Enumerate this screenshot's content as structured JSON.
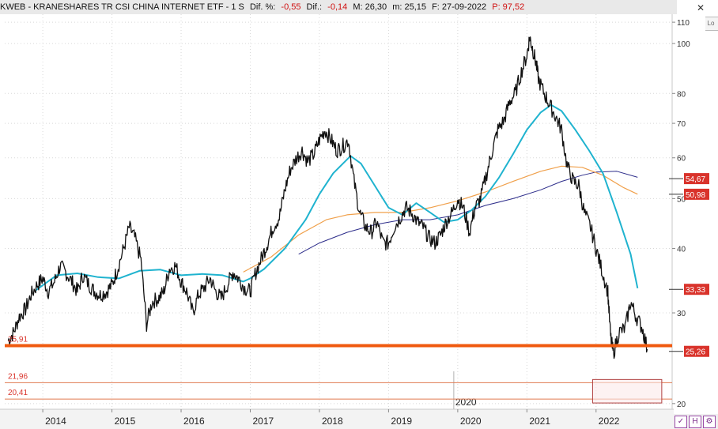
{
  "header": {
    "instrument": "KWEB - KRANESHARES TR CSI CHINA INTERNET ETF - 1 S",
    "diff_pct_label": "Dif. %:",
    "diff_pct_value": "-0,55",
    "diff_label": "Dif.:",
    "diff_value": "-0,14",
    "max_label": "M: 26,30",
    "min_label": "m: 25,15",
    "date_label": "F: 27-09-2022",
    "p_label": "P: 97,52"
  },
  "toolbar": {
    "close_glyph": "✕",
    "scale_label": "Lo",
    "btn_flag": "✓",
    "btn_save": "H",
    "btn_settings": "⚙"
  },
  "colors": {
    "price": "#111111",
    "ma_short": "#1fb3cf",
    "ma_mid": "#f0a04b",
    "ma_long": "#2c2c8a",
    "support": "#f05a10",
    "level_lines": "#e07a50",
    "label_red": "#d9332b",
    "grid": "#d8d8d8"
  },
  "chart_data": {
    "type": "line",
    "title": "KWEB - KRANESHARES TR CSI CHINA INTERNET ETF - 1 S",
    "y_scale": "log",
    "ylim": [
      19.5,
      114
    ],
    "y_ticks": [
      20,
      30,
      40,
      50,
      60,
      70,
      80,
      100,
      110
    ],
    "x_range": [
      2013.45,
      2023.1
    ],
    "x_ticks": [
      {
        "x": 2014,
        "label": "2014"
      },
      {
        "x": 2015,
        "label": "2015"
      },
      {
        "x": 2016,
        "label": "2016"
      },
      {
        "x": 2017,
        "label": "2017"
      },
      {
        "x": 2018,
        "label": "2018"
      },
      {
        "x": 2019,
        "label": "2019"
      },
      {
        "x": 2020,
        "label": "2020"
      },
      {
        "x": 2021,
        "label": "2021"
      },
      {
        "x": 2022,
        "label": "2022"
      }
    ],
    "x_marker": {
      "x": 2020,
      "label": "2020"
    },
    "grid": true,
    "series": [
      {
        "key": "price",
        "x": [
          2013.5,
          2013.58,
          2013.66,
          2013.75,
          2013.83,
          2013.92,
          2014.0,
          2014.08,
          2014.17,
          2014.25,
          2014.33,
          2014.42,
          2014.5,
          2014.58,
          2014.67,
          2014.75,
          2014.83,
          2014.92,
          2015.0,
          2015.08,
          2015.17,
          2015.25,
          2015.33,
          2015.42,
          2015.5,
          2015.58,
          2015.67,
          2015.75,
          2015.83,
          2015.92,
          2016.0,
          2016.08,
          2016.17,
          2016.25,
          2016.33,
          2016.42,
          2016.5,
          2016.58,
          2016.67,
          2016.75,
          2016.83,
          2016.92,
          2017.0,
          2017.08,
          2017.17,
          2017.25,
          2017.33,
          2017.42,
          2017.5,
          2017.58,
          2017.67,
          2017.75,
          2017.83,
          2017.92,
          2018.0,
          2018.08,
          2018.17,
          2018.25,
          2018.33,
          2018.42,
          2018.5,
          2018.58,
          2018.67,
          2018.75,
          2018.83,
          2018.92,
          2019.0,
          2019.08,
          2019.17,
          2019.25,
          2019.33,
          2019.42,
          2019.5,
          2019.58,
          2019.67,
          2019.75,
          2019.83,
          2019.92,
          2020.0,
          2020.08,
          2020.17,
          2020.25,
          2020.33,
          2020.42,
          2020.5,
          2020.58,
          2020.67,
          2020.75,
          2020.83,
          2020.92,
          2021.0,
          2021.04,
          2021.08,
          2021.13,
          2021.17,
          2021.25,
          2021.33,
          2021.42,
          2021.5,
          2021.58,
          2021.67,
          2021.75,
          2021.83,
          2021.92,
          2022.0,
          2022.08,
          2022.17,
          2022.21,
          2022.25,
          2022.33,
          2022.42,
          2022.5,
          2022.58,
          2022.67,
          2022.74
        ],
        "y": [
          26.5,
          27.5,
          29.5,
          30.5,
          32.5,
          34.0,
          35.0,
          33.0,
          34.5,
          37.0,
          36.0,
          34.5,
          33.0,
          35.5,
          34.0,
          33.0,
          32.5,
          33.0,
          34.0,
          36.5,
          40.0,
          44.0,
          42.0,
          38.0,
          28.5,
          31.5,
          32.0,
          33.0,
          36.5,
          37.0,
          34.5,
          33.0,
          30.0,
          32.5,
          33.5,
          35.0,
          33.0,
          32.0,
          34.0,
          36.0,
          35.0,
          33.5,
          33.0,
          36.0,
          38.5,
          41.0,
          44.0,
          46.0,
          52.0,
          57.0,
          60.0,
          62.0,
          59.0,
          61.0,
          65.0,
          68.0,
          65.0,
          62.0,
          63.0,
          65.0,
          54.0,
          47.0,
          44.0,
          43.0,
          45.0,
          41.0,
          41.0,
          44.0,
          46.0,
          48.0,
          47.0,
          45.0,
          44.0,
          42.0,
          41.0,
          42.5,
          45.0,
          47.0,
          50.0,
          48.0,
          43.0,
          48.0,
          50.0,
          56.0,
          62.0,
          68.0,
          71.0,
          77.0,
          80.0,
          88.0,
          95.0,
          103.0,
          98.0,
          92.0,
          85.0,
          80.0,
          76.0,
          72.0,
          68.0,
          58.0,
          54.0,
          53.0,
          47.0,
          44.0,
          40.0,
          36.5,
          33.0,
          27.0,
          25.0,
          27.5,
          28.0,
          31.5,
          29.5,
          28.0,
          25.5
        ]
      },
      {
        "key": "ma_short",
        "x": [
          2013.9,
          2014.2,
          2014.5,
          2014.8,
          2015.1,
          2015.4,
          2015.7,
          2016.0,
          2016.3,
          2016.6,
          2016.9,
          2017.0,
          2017.2,
          2017.5,
          2017.8,
          2018.0,
          2018.2,
          2018.45,
          2018.6,
          2018.8,
          2019.0,
          2019.2,
          2019.4,
          2019.6,
          2019.8,
          2020.0,
          2020.2,
          2020.4,
          2020.6,
          2020.8,
          2021.0,
          2021.2,
          2021.35,
          2021.5,
          2021.7,
          2021.9,
          2022.1,
          2022.3,
          2022.5,
          2022.6
        ],
        "y": [
          33.2,
          35.5,
          35.8,
          35.2,
          35.0,
          36.2,
          36.4,
          35.5,
          35.7,
          35.5,
          34.5,
          35.0,
          36.5,
          40.0,
          45.5,
          51.0,
          56.0,
          60.5,
          58.5,
          53.0,
          48.0,
          46.5,
          49.0,
          47.0,
          45.0,
          45.5,
          47.5,
          50.5,
          55.0,
          61.0,
          68.0,
          73.5,
          76.0,
          74.0,
          68.0,
          62.0,
          56.0,
          47.0,
          39.0,
          33.5
        ]
      },
      {
        "key": "ma_mid",
        "x": [
          2016.9,
          2017.3,
          2017.7,
          2018.1,
          2018.4,
          2018.8,
          2019.2,
          2019.6,
          2020.0,
          2020.4,
          2020.8,
          2021.2,
          2021.5,
          2021.8,
          2022.1,
          2022.4,
          2022.6
        ],
        "y": [
          36.0,
          38.5,
          42.5,
          45.5,
          46.5,
          47.0,
          47.0,
          48.0,
          49.5,
          51.5,
          54.0,
          56.5,
          57.8,
          57.5,
          55.5,
          52.5,
          51.0
        ]
      },
      {
        "key": "ma_long",
        "x": [
          2017.7,
          2018.0,
          2018.4,
          2018.8,
          2019.2,
          2019.6,
          2020.0,
          2020.4,
          2020.8,
          2021.2,
          2021.5,
          2021.8,
          2022.0,
          2022.3,
          2022.6
        ],
        "y": [
          39.0,
          41.0,
          43.0,
          44.5,
          45.5,
          45.5,
          46.5,
          48.5,
          50.0,
          52.0,
          54.0,
          55.5,
          56.3,
          56.5,
          55.0
        ]
      }
    ],
    "levels": [
      {
        "key": "support",
        "value": 25.91,
        "label": "25,91",
        "label_side": "left"
      },
      {
        "key": "level_1",
        "value": 21.96,
        "label": "21,96",
        "label_side": "left"
      },
      {
        "key": "level_2",
        "value": 20.41,
        "label": "20,41",
        "label_side": "left"
      }
    ],
    "zone": {
      "x_start": 2021.95,
      "x_end": 2022.95,
      "y_low": 20.41,
      "y_high": 21.96
    },
    "price_tags": [
      {
        "value": 54.67,
        "label": "54,67"
      },
      {
        "value": 50.98,
        "label": "50,98"
      },
      {
        "value": 33.33,
        "label": "33,33"
      },
      {
        "value": 25.26,
        "label": "25,26"
      }
    ]
  }
}
